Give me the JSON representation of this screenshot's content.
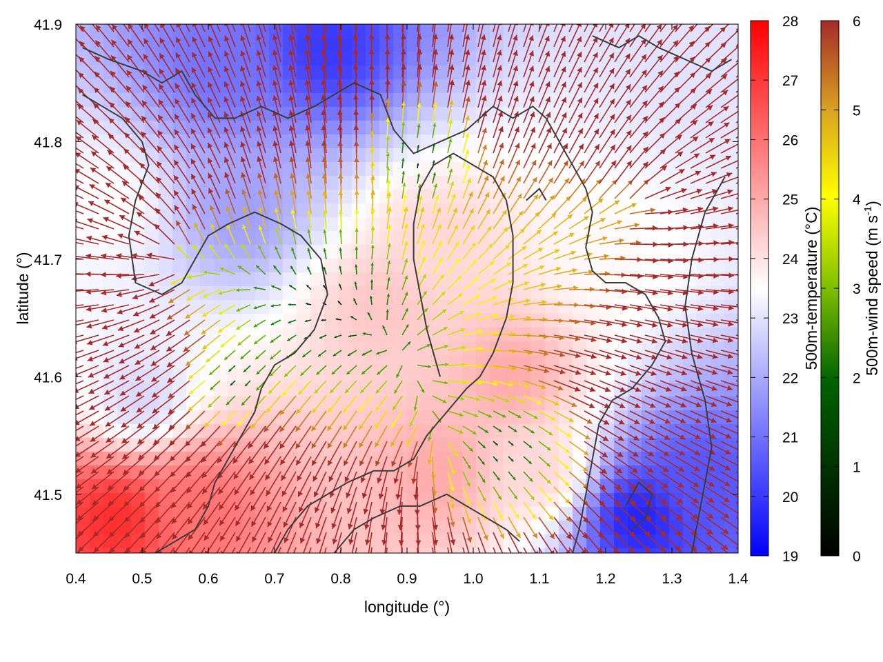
{
  "chart_data": {
    "type": "heatmap",
    "overlay": "wind vector field colored by speed, with coastline contour",
    "xlabel": "longitude (°)",
    "ylabel": "latitude (°)",
    "xlim": [
      0.4,
      1.4
    ],
    "ylim": [
      41.45,
      41.9
    ],
    "x_ticks": [
      "0.4",
      "0.5",
      "0.6",
      "0.7",
      "0.8",
      "0.9",
      "1.0",
      "1.1",
      "1.2",
      "1.3",
      "1.4"
    ],
    "y_ticks": [
      "41.5",
      "41.6",
      "41.7",
      "41.8",
      "41.9"
    ],
    "grid": false,
    "temperature_colorbar": {
      "label": "500m-temperature (°C)",
      "range": [
        19,
        28
      ],
      "ticks": [
        "19",
        "20",
        "21",
        "22",
        "23",
        "24",
        "25",
        "26",
        "27",
        "28"
      ],
      "colors": [
        "#0000ff",
        "#ffffff",
        "#ff0000"
      ]
    },
    "wind_colorbar": {
      "label_main": "500m-wind speed (m s",
      "label_sup": "-1",
      "label_end": ")",
      "range": [
        0,
        6
      ],
      "ticks": [
        "0",
        "1",
        "2",
        "3",
        "4",
        "5",
        "6"
      ],
      "colors": [
        "#000000",
        "#006400",
        "#1f8a00",
        "#7fbf00",
        "#ffff00",
        "#daa520",
        "#a52a2a"
      ]
    },
    "temperature_field": [
      {
        "lon": 0.62,
        "lat": 41.86,
        "value": 21.0
      },
      {
        "lon": 0.78,
        "lat": 41.88,
        "value": 20.0
      },
      {
        "lon": 0.45,
        "lat": 41.75,
        "value": 23.5
      },
      {
        "lon": 0.65,
        "lat": 41.74,
        "value": 21.8
      },
      {
        "lon": 0.86,
        "lat": 41.66,
        "value": 24.5
      },
      {
        "lon": 0.95,
        "lat": 41.72,
        "value": 24.2
      },
      {
        "lon": 1.06,
        "lat": 41.6,
        "value": 25.0
      },
      {
        "lon": 1.1,
        "lat": 41.52,
        "value": 24.2
      },
      {
        "lon": 0.46,
        "lat": 41.48,
        "value": 27.2
      },
      {
        "lon": 0.58,
        "lat": 41.49,
        "value": 26.0
      },
      {
        "lon": 0.5,
        "lat": 41.58,
        "value": 22.8
      },
      {
        "lon": 1.25,
        "lat": 41.48,
        "value": 19.6
      },
      {
        "lon": 1.34,
        "lat": 41.51,
        "value": 20.5
      },
      {
        "lon": 1.32,
        "lat": 41.86,
        "value": 23.0
      },
      {
        "lon": 1.2,
        "lat": 41.7,
        "value": 23.6
      },
      {
        "lon": 0.95,
        "lat": 41.52,
        "value": 25.0
      }
    ],
    "wind_field": {
      "description": "gridded wind vectors; arrows point in the wind direction, colored and sized by speed",
      "sources": [
        {
          "lon": 0.55,
          "lat": 41.7,
          "strength": 6.0
        },
        {
          "lon": 0.95,
          "lat": 41.55,
          "strength": 5.0
        },
        {
          "lon": 1.25,
          "lat": 41.75,
          "strength": 4.0
        }
      ],
      "calm_centers": [
        {
          "lon": 0.78,
          "lat": 41.66,
          "radius": 0.09
        },
        {
          "lon": 1.04,
          "lat": 41.54,
          "radius": 0.08
        },
        {
          "lon": 0.65,
          "lat": 41.6,
          "radius": 0.05
        },
        {
          "lon": 0.92,
          "lat": 41.78,
          "radius": 0.06
        }
      ]
    },
    "coastlines": [
      [
        [
          0.41,
          41.88
        ],
        [
          0.45,
          41.87
        ],
        [
          0.5,
          41.86
        ],
        [
          0.53,
          41.85
        ],
        [
          0.56,
          41.86
        ],
        [
          0.58,
          41.84
        ],
        [
          0.61,
          41.82
        ],
        [
          0.64,
          41.82
        ],
        [
          0.68,
          41.83
        ],
        [
          0.72,
          41.82
        ],
        [
          0.76,
          41.83
        ],
        [
          0.79,
          41.84
        ],
        [
          0.82,
          41.85
        ],
        [
          0.86,
          41.84
        ],
        [
          0.88,
          41.81
        ],
        [
          0.91,
          41.79
        ],
        [
          0.95,
          41.8
        ],
        [
          0.99,
          41.81
        ],
        [
          1.03,
          41.83
        ],
        [
          1.06,
          41.82
        ],
        [
          1.09,
          41.83
        ],
        [
          1.11,
          41.82
        ],
        [
          1.13,
          41.8
        ],
        [
          1.15,
          41.78
        ],
        [
          1.17,
          41.76
        ],
        [
          1.18,
          41.74
        ],
        [
          1.17,
          41.71
        ],
        [
          1.18,
          41.69
        ],
        [
          1.2,
          41.68
        ],
        [
          1.23,
          41.68
        ],
        [
          1.26,
          41.67
        ],
        [
          1.28,
          41.65
        ],
        [
          1.29,
          41.63
        ],
        [
          1.27,
          41.61
        ],
        [
          1.24,
          41.59
        ],
        [
          1.21,
          41.58
        ],
        [
          1.19,
          41.56
        ],
        [
          1.18,
          41.53
        ],
        [
          1.17,
          41.5
        ],
        [
          1.16,
          41.47
        ],
        [
          1.15,
          41.45
        ]
      ],
      [
        [
          0.41,
          41.84
        ],
        [
          0.44,
          41.83
        ],
        [
          0.47,
          41.82
        ],
        [
          0.5,
          41.8
        ],
        [
          0.51,
          41.78
        ],
        [
          0.49,
          41.75
        ],
        [
          0.48,
          41.72
        ],
        [
          0.49,
          41.68
        ],
        [
          0.53,
          41.67
        ],
        [
          0.56,
          41.68
        ],
        [
          0.58,
          41.7
        ],
        [
          0.6,
          41.72
        ],
        [
          0.63,
          41.73
        ],
        [
          0.67,
          41.74
        ],
        [
          0.71,
          41.73
        ],
        [
          0.74,
          41.72
        ],
        [
          0.77,
          41.7
        ],
        [
          0.78,
          41.67
        ],
        [
          0.76,
          41.64
        ],
        [
          0.73,
          41.62
        ],
        [
          0.7,
          41.61
        ],
        [
          0.68,
          41.59
        ],
        [
          0.67,
          41.57
        ],
        [
          0.65,
          41.55
        ],
        [
          0.63,
          41.53
        ],
        [
          0.61,
          41.51
        ],
        [
          0.6,
          41.49
        ],
        [
          0.58,
          41.47
        ],
        [
          0.55,
          41.46
        ],
        [
          0.52,
          41.45
        ]
      ],
      [
        [
          0.7,
          41.45
        ],
        [
          0.72,
          41.47
        ],
        [
          0.75,
          41.49
        ],
        [
          0.78,
          41.5
        ],
        [
          0.81,
          41.51
        ],
        [
          0.85,
          41.52
        ],
        [
          0.88,
          41.52
        ],
        [
          0.91,
          41.53
        ],
        [
          0.93,
          41.55
        ],
        [
          0.96,
          41.57
        ],
        [
          0.99,
          41.59
        ],
        [
          1.01,
          41.6
        ],
        [
          1.03,
          41.62
        ],
        [
          1.05,
          41.65
        ],
        [
          1.06,
          41.68
        ],
        [
          1.06,
          41.72
        ],
        [
          1.05,
          41.75
        ],
        [
          1.03,
          41.77
        ],
        [
          1.0,
          41.78
        ],
        [
          0.97,
          41.79
        ],
        [
          0.94,
          41.78
        ],
        [
          0.92,
          41.76
        ],
        [
          0.91,
          41.73
        ],
        [
          0.91,
          41.7
        ],
        [
          0.92,
          41.67
        ],
        [
          0.93,
          41.64
        ],
        [
          0.94,
          41.62
        ],
        [
          0.95,
          41.6
        ]
      ],
      [
        [
          0.79,
          41.45
        ],
        [
          0.82,
          41.47
        ],
        [
          0.85,
          41.48
        ],
        [
          0.89,
          41.49
        ],
        [
          0.92,
          41.49
        ],
        [
          0.96,
          41.5
        ],
        [
          0.99,
          41.49
        ],
        [
          1.02,
          41.48
        ],
        [
          1.05,
          41.47
        ],
        [
          1.07,
          41.46
        ]
      ],
      [
        [
          1.23,
          41.49
        ],
        [
          1.25,
          41.51
        ],
        [
          1.27,
          41.5
        ],
        [
          1.26,
          41.48
        ],
        [
          1.24,
          41.47
        ]
      ],
      [
        [
          1.33,
          41.45
        ],
        [
          1.34,
          41.48
        ],
        [
          1.35,
          41.51
        ],
        [
          1.36,
          41.54
        ],
        [
          1.35,
          41.58
        ],
        [
          1.33,
          41.62
        ],
        [
          1.32,
          41.66
        ],
        [
          1.33,
          41.7
        ],
        [
          1.35,
          41.74
        ],
        [
          1.38,
          41.77
        ]
      ],
      [
        [
          1.08,
          41.75
        ],
        [
          1.1,
          41.76
        ],
        [
          1.11,
          41.75
        ]
      ],
      [
        [
          1.18,
          41.89
        ],
        [
          1.22,
          41.88
        ],
        [
          1.25,
          41.89
        ],
        [
          1.28,
          41.88
        ],
        [
          1.32,
          41.87
        ],
        [
          1.36,
          41.86
        ],
        [
          1.39,
          41.87
        ]
      ]
    ]
  }
}
